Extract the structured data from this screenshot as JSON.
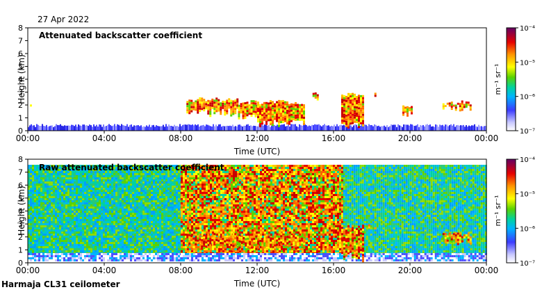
{
  "date": "27 Apr 2022",
  "instrument": "Harmaja CL31 ceilometer",
  "chart_data": [
    {
      "type": "heatmap",
      "title": "Attenuated backscatter coefficient",
      "xlabel": "Time (UTC)",
      "ylabel": "Height (km)",
      "xticks": [
        "00:00",
        "04:00",
        "08:00",
        "12:00",
        "16:00",
        "20:00",
        "00:00"
      ],
      "yticks": [
        "0",
        "1",
        "2",
        "3",
        "4",
        "5",
        "6",
        "7",
        "8"
      ],
      "xlim_hours": [
        0,
        24
      ],
      "ylim_km": [
        0,
        8
      ],
      "colorbar": {
        "label": "m⁻¹ sr⁻¹",
        "scale": "log",
        "range": [
          1e-07,
          0.0001
        ],
        "ticks": [
          "10⁻⁷",
          "10⁻⁶",
          "10⁻⁵",
          "10⁻⁴"
        ]
      },
      "features": [
        {
          "kind": "boundary-layer",
          "from_hour": 0,
          "to_hour": 24,
          "top_km": 0.4
        },
        {
          "kind": "cloud",
          "from_hour": 0.0,
          "to_hour": 0.5,
          "base_km": 1.9,
          "top_km": 2.3
        },
        {
          "kind": "cloud",
          "from_hour": 8.3,
          "to_hour": 11.0,
          "base_km": 1.2,
          "top_km": 2.6
        },
        {
          "kind": "cloud",
          "from_hour": 11.0,
          "to_hour": 12.0,
          "base_km": 0.8,
          "top_km": 2.4
        },
        {
          "kind": "cloud",
          "from_hour": 12.0,
          "to_hour": 14.5,
          "base_km": 0.4,
          "top_km": 2.4
        },
        {
          "kind": "cloud",
          "from_hour": 14.9,
          "to_hour": 15.2,
          "base_km": 2.2,
          "top_km": 3.0
        },
        {
          "kind": "cloud",
          "from_hour": 16.4,
          "to_hour": 17.5,
          "base_km": 0.2,
          "top_km": 3.0
        },
        {
          "kind": "cloud",
          "from_hour": 17.7,
          "to_hour": 19.0,
          "base_km": 2.7,
          "top_km": 3.0
        },
        {
          "kind": "cloud",
          "from_hour": 19.6,
          "to_hour": 20.1,
          "base_km": 1.0,
          "top_km": 2.0
        },
        {
          "kind": "cloud",
          "from_hour": 21.7,
          "to_hour": 23.2,
          "base_km": 1.5,
          "top_km": 2.4
        }
      ]
    },
    {
      "type": "heatmap",
      "title": "Raw attenuated backscatter coefficient",
      "xlabel": "Time (UTC)",
      "ylabel": "Height (km)",
      "xticks": [
        "00:00",
        "04:00",
        "08:00",
        "12:00",
        "16:00",
        "20:00",
        "00:00"
      ],
      "yticks": [
        "0",
        "1",
        "2",
        "3",
        "4",
        "5",
        "6",
        "7",
        "8"
      ],
      "xlim_hours": [
        0,
        24
      ],
      "ylim_km": [
        0,
        8
      ],
      "colorbar": {
        "label": "m⁻¹ sr⁻¹",
        "scale": "log",
        "range": [
          1e-07,
          0.0001
        ],
        "ticks": [
          "10⁻⁷",
          "10⁻⁶",
          "10⁻⁵",
          "10⁻⁴"
        ]
      },
      "features": [
        {
          "kind": "noise",
          "from_hour": 0,
          "to_hour": 8.0,
          "level": "green-cyan"
        },
        {
          "kind": "noise",
          "from_hour": 8.0,
          "to_hour": 16.5,
          "level": "yellow-red"
        },
        {
          "kind": "noise",
          "from_hour": 16.5,
          "to_hour": 24,
          "level": "green-cyan"
        },
        {
          "kind": "cloud",
          "from_hour": 8.3,
          "to_hour": 14.5,
          "base_km": 1.0,
          "top_km": 2.3
        },
        {
          "kind": "cloud",
          "from_hour": 16.4,
          "to_hour": 17.5,
          "base_km": 0.2,
          "top_km": 3.0
        },
        {
          "kind": "cloud",
          "from_hour": 17.7,
          "to_hour": 19.0,
          "base_km": 2.7,
          "top_km": 3.0
        },
        {
          "kind": "cloud",
          "from_hour": 21.7,
          "to_hour": 23.2,
          "base_km": 1.5,
          "top_km": 2.4
        }
      ]
    }
  ]
}
